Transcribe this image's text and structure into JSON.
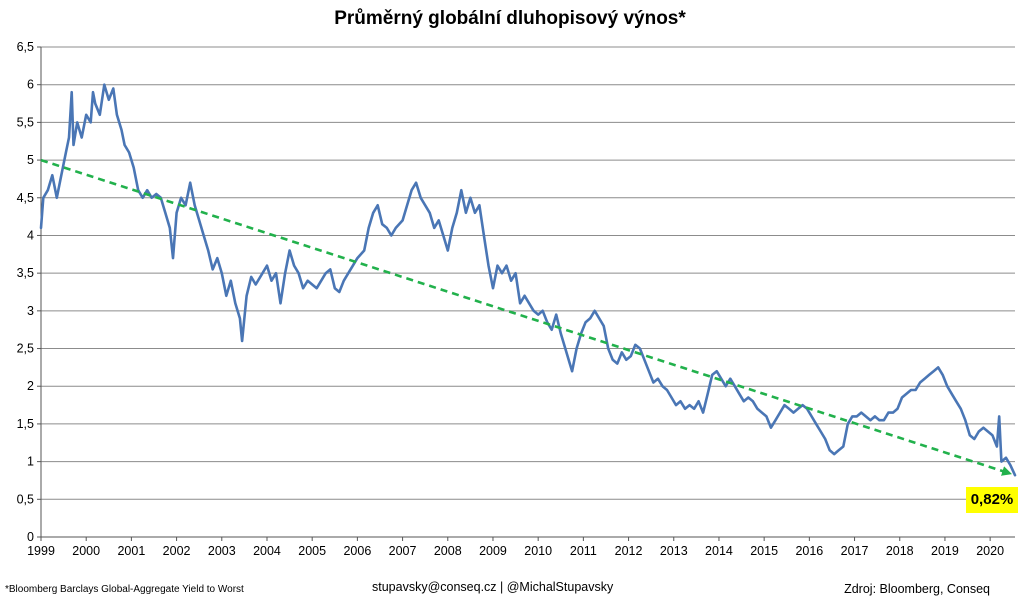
{
  "chart_data": {
    "type": "line",
    "title": "Průměrný globální dluhopisový výnos*",
    "xlabel": "",
    "ylabel": "",
    "xlim": [
      1999.0,
      2020.55
    ],
    "ylim": [
      0,
      6.5
    ],
    "yticks": [
      "0",
      "0,5",
      "1",
      "1,5",
      "2",
      "2,5",
      "3",
      "3,5",
      "4",
      "4,5",
      "5",
      "5,5",
      "6",
      "6,5"
    ],
    "xticks": [
      "1999",
      "2000",
      "2001",
      "2002",
      "2003",
      "2004",
      "2005",
      "2006",
      "2007",
      "2008",
      "2009",
      "2010",
      "2011",
      "2012",
      "2013",
      "2014",
      "2015",
      "2016",
      "2017",
      "2018",
      "2019",
      "2020"
    ],
    "grid": "horizontal",
    "series": [
      {
        "color": "#4a76b5",
        "points": [
          [
            1999.0,
            4.1
          ],
          [
            1999.05,
            4.5
          ],
          [
            1999.15,
            4.6
          ],
          [
            1999.25,
            4.8
          ],
          [
            1999.35,
            4.5
          ],
          [
            1999.45,
            4.8
          ],
          [
            1999.55,
            5.1
          ],
          [
            1999.62,
            5.3
          ],
          [
            1999.68,
            5.9
          ],
          [
            1999.72,
            5.2
          ],
          [
            1999.8,
            5.5
          ],
          [
            1999.9,
            5.3
          ],
          [
            2000.0,
            5.6
          ],
          [
            2000.1,
            5.5
          ],
          [
            2000.15,
            5.9
          ],
          [
            2000.2,
            5.75
          ],
          [
            2000.3,
            5.6
          ],
          [
            2000.4,
            6.0
          ],
          [
            2000.5,
            5.8
          ],
          [
            2000.6,
            5.95
          ],
          [
            2000.68,
            5.6
          ],
          [
            2000.78,
            5.4
          ],
          [
            2000.85,
            5.2
          ],
          [
            2000.95,
            5.1
          ],
          [
            2001.05,
            4.9
          ],
          [
            2001.15,
            4.6
          ],
          [
            2001.25,
            4.5
          ],
          [
            2001.35,
            4.6
          ],
          [
            2001.45,
            4.5
          ],
          [
            2001.55,
            4.55
          ],
          [
            2001.65,
            4.5
          ],
          [
            2001.75,
            4.3
          ],
          [
            2001.85,
            4.1
          ],
          [
            2001.92,
            3.7
          ],
          [
            2002.0,
            4.3
          ],
          [
            2002.1,
            4.5
          ],
          [
            2002.2,
            4.4
          ],
          [
            2002.3,
            4.7
          ],
          [
            2002.4,
            4.4
          ],
          [
            2002.5,
            4.2
          ],
          [
            2002.6,
            4.0
          ],
          [
            2002.7,
            3.8
          ],
          [
            2002.8,
            3.55
          ],
          [
            2002.9,
            3.7
          ],
          [
            2003.0,
            3.5
          ],
          [
            2003.1,
            3.2
          ],
          [
            2003.2,
            3.4
          ],
          [
            2003.3,
            3.1
          ],
          [
            2003.4,
            2.9
          ],
          [
            2003.45,
            2.6
          ],
          [
            2003.55,
            3.2
          ],
          [
            2003.65,
            3.45
          ],
          [
            2003.75,
            3.35
          ],
          [
            2003.9,
            3.5
          ],
          [
            2004.0,
            3.6
          ],
          [
            2004.1,
            3.4
          ],
          [
            2004.2,
            3.5
          ],
          [
            2004.3,
            3.1
          ],
          [
            2004.4,
            3.5
          ],
          [
            2004.5,
            3.8
          ],
          [
            2004.6,
            3.6
          ],
          [
            2004.7,
            3.5
          ],
          [
            2004.8,
            3.3
          ],
          [
            2004.9,
            3.4
          ],
          [
            2005.0,
            3.35
          ],
          [
            2005.1,
            3.3
          ],
          [
            2005.2,
            3.4
          ],
          [
            2005.3,
            3.5
          ],
          [
            2005.4,
            3.55
          ],
          [
            2005.5,
            3.3
          ],
          [
            2005.6,
            3.25
          ],
          [
            2005.7,
            3.4
          ],
          [
            2005.8,
            3.5
          ],
          [
            2005.9,
            3.6
          ],
          [
            2006.0,
            3.7
          ],
          [
            2006.15,
            3.8
          ],
          [
            2006.25,
            4.1
          ],
          [
            2006.35,
            4.3
          ],
          [
            2006.45,
            4.4
          ],
          [
            2006.55,
            4.15
          ],
          [
            2006.65,
            4.1
          ],
          [
            2006.75,
            4.0
          ],
          [
            2006.85,
            4.1
          ],
          [
            2007.0,
            4.2
          ],
          [
            2007.1,
            4.4
          ],
          [
            2007.2,
            4.6
          ],
          [
            2007.3,
            4.7
          ],
          [
            2007.4,
            4.5
          ],
          [
            2007.5,
            4.4
          ],
          [
            2007.6,
            4.3
          ],
          [
            2007.7,
            4.1
          ],
          [
            2007.8,
            4.2
          ],
          [
            2007.9,
            4.0
          ],
          [
            2008.0,
            3.8
          ],
          [
            2008.1,
            4.1
          ],
          [
            2008.2,
            4.3
          ],
          [
            2008.3,
            4.6
          ],
          [
            2008.4,
            4.3
          ],
          [
            2008.5,
            4.5
          ],
          [
            2008.6,
            4.3
          ],
          [
            2008.7,
            4.4
          ],
          [
            2008.8,
            4.0
          ],
          [
            2008.9,
            3.6
          ],
          [
            2009.0,
            3.3
          ],
          [
            2009.1,
            3.6
          ],
          [
            2009.2,
            3.5
          ],
          [
            2009.3,
            3.6
          ],
          [
            2009.4,
            3.4
          ],
          [
            2009.5,
            3.5
          ],
          [
            2009.6,
            3.1
          ],
          [
            2009.7,
            3.2
          ],
          [
            2009.8,
            3.1
          ],
          [
            2009.9,
            3.0
          ],
          [
            2010.0,
            2.95
          ],
          [
            2010.1,
            3.0
          ],
          [
            2010.2,
            2.85
          ],
          [
            2010.3,
            2.75
          ],
          [
            2010.4,
            2.95
          ],
          [
            2010.5,
            2.7
          ],
          [
            2010.6,
            2.5
          ],
          [
            2010.7,
            2.3
          ],
          [
            2010.75,
            2.2
          ],
          [
            2010.85,
            2.5
          ],
          [
            2010.95,
            2.7
          ],
          [
            2011.05,
            2.85
          ],
          [
            2011.15,
            2.9
          ],
          [
            2011.25,
            3.0
          ],
          [
            2011.35,
            2.9
          ],
          [
            2011.45,
            2.8
          ],
          [
            2011.55,
            2.5
          ],
          [
            2011.65,
            2.35
          ],
          [
            2011.75,
            2.3
          ],
          [
            2011.85,
            2.45
          ],
          [
            2011.95,
            2.35
          ],
          [
            2012.05,
            2.4
          ],
          [
            2012.15,
            2.55
          ],
          [
            2012.25,
            2.5
          ],
          [
            2012.35,
            2.35
          ],
          [
            2012.45,
            2.2
          ],
          [
            2012.55,
            2.05
          ],
          [
            2012.65,
            2.1
          ],
          [
            2012.75,
            2.0
          ],
          [
            2012.85,
            1.95
          ],
          [
            2012.95,
            1.85
          ],
          [
            2013.05,
            1.75
          ],
          [
            2013.15,
            1.8
          ],
          [
            2013.25,
            1.7
          ],
          [
            2013.35,
            1.75
          ],
          [
            2013.45,
            1.7
          ],
          [
            2013.55,
            1.8
          ],
          [
            2013.65,
            1.65
          ],
          [
            2013.75,
            1.9
          ],
          [
            2013.85,
            2.15
          ],
          [
            2013.95,
            2.2
          ],
          [
            2014.05,
            2.1
          ],
          [
            2014.15,
            2.0
          ],
          [
            2014.25,
            2.1
          ],
          [
            2014.35,
            2.0
          ],
          [
            2014.45,
            1.9
          ],
          [
            2014.55,
            1.8
          ],
          [
            2014.65,
            1.85
          ],
          [
            2014.75,
            1.8
          ],
          [
            2014.85,
            1.7
          ],
          [
            2014.95,
            1.65
          ],
          [
            2015.05,
            1.6
          ],
          [
            2015.15,
            1.45
          ],
          [
            2015.25,
            1.55
          ],
          [
            2015.35,
            1.65
          ],
          [
            2015.45,
            1.75
          ],
          [
            2015.55,
            1.7
          ],
          [
            2015.65,
            1.65
          ],
          [
            2015.75,
            1.7
          ],
          [
            2015.85,
            1.75
          ],
          [
            2015.95,
            1.7
          ],
          [
            2016.05,
            1.6
          ],
          [
            2016.15,
            1.5
          ],
          [
            2016.25,
            1.4
          ],
          [
            2016.35,
            1.3
          ],
          [
            2016.45,
            1.15
          ],
          [
            2016.55,
            1.1
          ],
          [
            2016.65,
            1.15
          ],
          [
            2016.75,
            1.2
          ],
          [
            2016.85,
            1.5
          ],
          [
            2016.95,
            1.6
          ],
          [
            2017.05,
            1.6
          ],
          [
            2017.15,
            1.65
          ],
          [
            2017.25,
            1.6
          ],
          [
            2017.35,
            1.55
          ],
          [
            2017.45,
            1.6
          ],
          [
            2017.55,
            1.55
          ],
          [
            2017.65,
            1.55
          ],
          [
            2017.75,
            1.65
          ],
          [
            2017.85,
            1.65
          ],
          [
            2017.95,
            1.7
          ],
          [
            2018.05,
            1.85
          ],
          [
            2018.15,
            1.9
          ],
          [
            2018.25,
            1.95
          ],
          [
            2018.35,
            1.95
          ],
          [
            2018.45,
            2.05
          ],
          [
            2018.55,
            2.1
          ],
          [
            2018.65,
            2.15
          ],
          [
            2018.75,
            2.2
          ],
          [
            2018.85,
            2.25
          ],
          [
            2018.95,
            2.15
          ],
          [
            2019.05,
            2.0
          ],
          [
            2019.15,
            1.9
          ],
          [
            2019.25,
            1.8
          ],
          [
            2019.35,
            1.7
          ],
          [
            2019.45,
            1.55
          ],
          [
            2019.55,
            1.35
          ],
          [
            2019.65,
            1.3
          ],
          [
            2019.75,
            1.4
          ],
          [
            2019.85,
            1.45
          ],
          [
            2019.95,
            1.4
          ],
          [
            2020.05,
            1.35
          ],
          [
            2020.15,
            1.2
          ],
          [
            2020.2,
            1.6
          ],
          [
            2020.25,
            1.0
          ],
          [
            2020.35,
            1.05
          ],
          [
            2020.45,
            0.95
          ],
          [
            2020.55,
            0.82
          ]
        ]
      },
      {
        "style": "dashed",
        "color": "#22b14c",
        "points": [
          [
            1999.0,
            5.0
          ],
          [
            2020.4,
            0.85
          ]
        ]
      }
    ],
    "annotations": {
      "end_value_label": "0,82%"
    }
  },
  "footer": {
    "footnote": "*Bloomberg Barclays Global-Aggregate Yield to Worst",
    "contact": "stupavsky@conseq.cz  |  @MichalStupavsky",
    "source": "Zdroj: Bloomberg, Conseq"
  }
}
